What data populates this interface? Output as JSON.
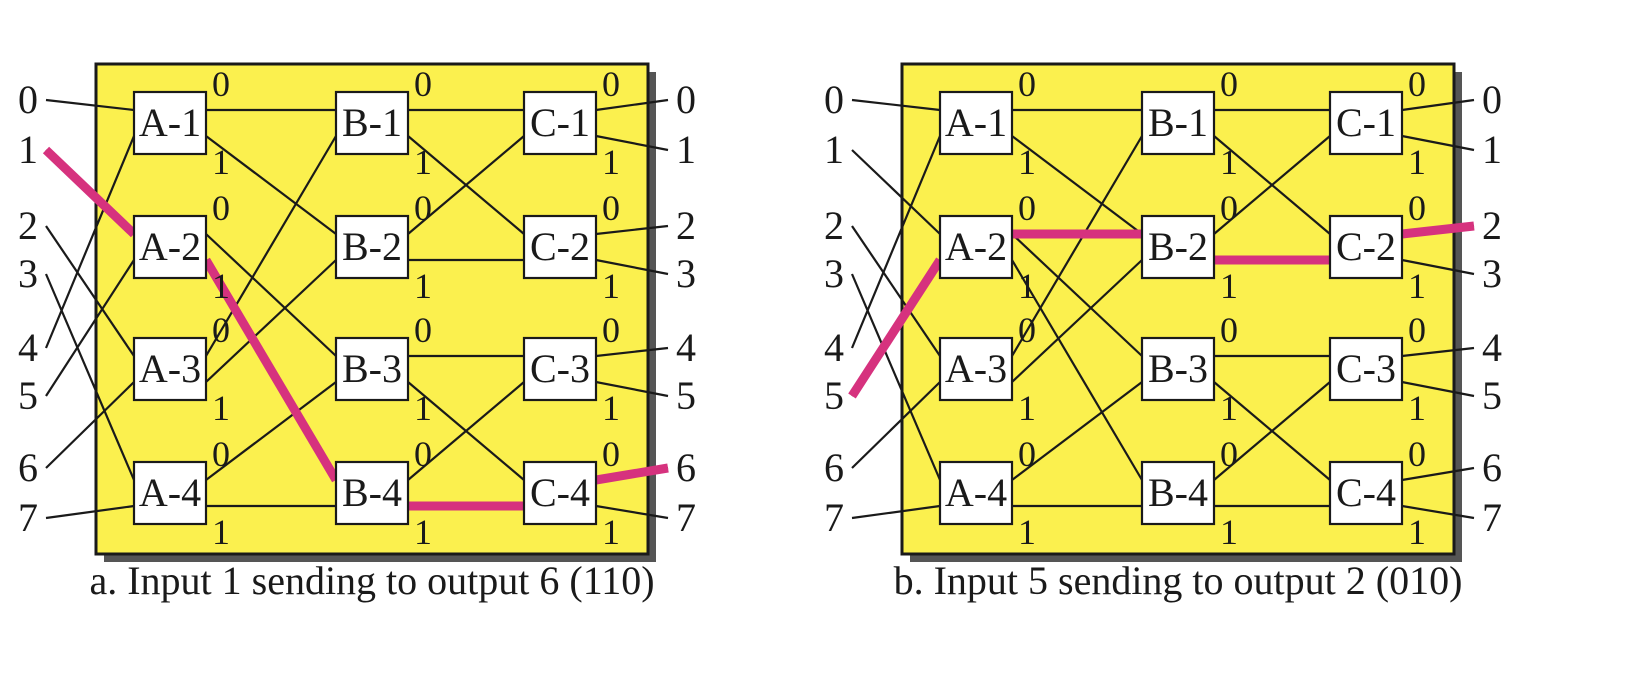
{
  "colors": {
    "panel_fill": "#fbf04e",
    "panel_border": "#1a1a1a",
    "shadow": "#555555",
    "line": "#1a1a1a",
    "highlight": "#d6327e",
    "box_fill": "#ffffff"
  },
  "stage_labels": {
    "a": [
      "A-1",
      "A-2",
      "A-3",
      "A-4"
    ],
    "b": [
      "B-1",
      "B-2",
      "B-3",
      "B-4"
    ],
    "c": [
      "C-1",
      "C-2",
      "C-3",
      "C-4"
    ]
  },
  "bits": [
    "0",
    "1"
  ],
  "panels": [
    {
      "caption": "a. Input 1 sending to output 6 (110)",
      "inputs": [
        "0",
        "1",
        "2",
        "3",
        "4",
        "5",
        "6",
        "7"
      ],
      "outputs": [
        "0",
        "1",
        "2",
        "3",
        "4",
        "5",
        "6",
        "7"
      ],
      "input_to_a_switch": [
        0,
        1,
        2,
        3,
        0,
        1,
        2,
        3
      ],
      "input_to_a_port": [
        0,
        0,
        0,
        0,
        1,
        1,
        1,
        1
      ],
      "highlight_route": {
        "input": 1,
        "a": 1,
        "a_bit": 1,
        "b": 3,
        "b_bit": 1,
        "c": 3,
        "c_bit": 0
      }
    },
    {
      "caption": "b. Input 5 sending to output 2 (010)",
      "inputs": [
        "0",
        "1",
        "2",
        "3",
        "4",
        "5",
        "6",
        "7"
      ],
      "outputs": [
        "0",
        "1",
        "2",
        "3",
        "4",
        "5",
        "6",
        "7"
      ],
      "input_to_a_switch": [
        0,
        1,
        2,
        3,
        0,
        1,
        2,
        3
      ],
      "input_to_a_port": [
        0,
        0,
        0,
        0,
        1,
        1,
        1,
        1
      ],
      "highlight_route": {
        "input": 5,
        "a": 1,
        "a_bit": 0,
        "b": 1,
        "b_bit": 1,
        "c": 1,
        "c_bit": 0
      }
    }
  ]
}
